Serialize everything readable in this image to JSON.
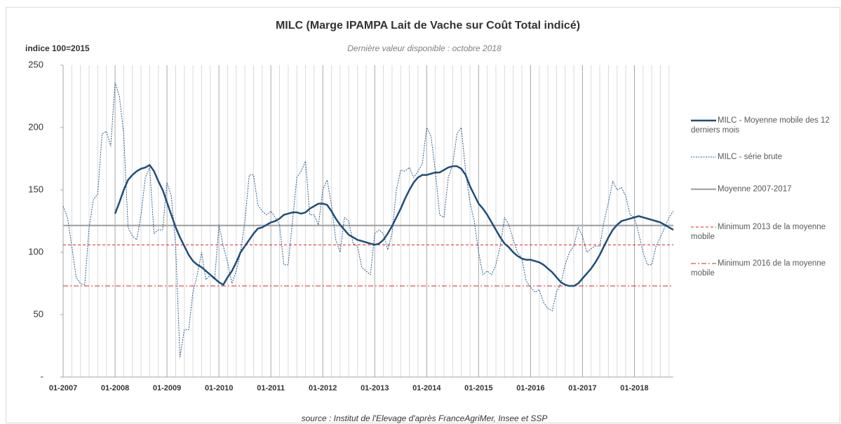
{
  "chart_data": {
    "type": "line",
    "title": "MILC (Marge IPAMPA Lait de Vache sur Coût Total indicé)",
    "subtitle": "Dernière valeur disponible : octobre 2018",
    "y_label": "indice 100=2015",
    "source": "source : Institut de l'Elevage d'après FranceAgriMer, Insee et SSP",
    "categories": [
      "01-2007",
      null,
      null,
      null,
      null,
      null,
      null,
      null,
      null,
      null,
      null,
      null,
      "01-2008",
      null,
      null,
      null,
      null,
      null,
      null,
      null,
      null,
      null,
      null,
      null,
      "01-2009",
      null,
      null,
      null,
      null,
      null,
      null,
      null,
      null,
      null,
      null,
      null,
      "01-2010",
      null,
      null,
      null,
      null,
      null,
      null,
      null,
      null,
      null,
      null,
      null,
      "01-2011",
      null,
      null,
      null,
      null,
      null,
      null,
      null,
      null,
      null,
      null,
      null,
      "01-2012",
      null,
      null,
      null,
      null,
      null,
      null,
      null,
      null,
      null,
      null,
      null,
      "01-2013",
      null,
      null,
      null,
      null,
      null,
      null,
      null,
      null,
      null,
      null,
      null,
      "01-2014",
      null,
      null,
      null,
      null,
      null,
      null,
      null,
      null,
      null,
      null,
      null,
      "01-2015",
      null,
      null,
      null,
      null,
      null,
      null,
      null,
      null,
      null,
      null,
      null,
      "01-2016",
      null,
      null,
      null,
      null,
      null,
      null,
      null,
      null,
      null,
      null,
      null,
      "01-2017",
      null,
      null,
      null,
      null,
      null,
      null,
      null,
      null,
      null,
      null,
      null,
      "01-2018",
      null,
      null,
      null,
      null,
      null,
      null,
      null,
      null,
      null
    ],
    "series": [
      {
        "name": "MILC - Moyenne mobile des 12 derniers mois",
        "color": "#1f4e79",
        "line_style": "solid",
        "values": [
          null,
          null,
          null,
          null,
          null,
          null,
          null,
          null,
          null,
          null,
          null,
          null,
          131,
          140,
          150,
          158,
          162,
          165,
          167,
          168,
          170,
          165,
          157,
          150,
          140,
          130,
          120,
          112,
          105,
          98,
          93,
          90,
          88,
          85,
          82,
          79,
          76,
          74,
          80,
          85,
          92,
          100,
          105,
          110,
          115,
          119,
          120,
          122,
          124,
          125,
          127,
          130,
          131,
          132,
          132,
          131,
          132,
          135,
          137,
          139,
          139,
          138,
          133,
          127,
          122,
          118,
          114,
          112,
          110,
          109,
          108,
          107,
          106,
          107,
          110,
          115,
          121,
          128,
          135,
          143,
          150,
          156,
          160,
          162,
          162,
          163,
          164,
          164,
          166,
          168,
          169,
          169,
          167,
          162,
          153,
          146,
          139,
          135,
          130,
          124,
          118,
          112,
          107,
          104,
          100,
          97,
          95,
          94,
          94,
          93,
          92,
          90,
          87,
          84,
          80,
          76,
          74,
          73,
          73,
          75,
          79,
          83,
          87,
          92,
          98,
          105,
          112,
          118,
          122,
          125,
          126,
          127,
          128,
          129,
          128,
          127,
          126,
          125,
          124,
          122,
          120,
          118
        ]
      },
      {
        "name": "MILC - série brute",
        "color": "#2e5c8a",
        "line_style": "dotted",
        "values": [
          137,
          128,
          105,
          80,
          75,
          74,
          120,
          142,
          147,
          195,
          197,
          185,
          236,
          225,
          195,
          120,
          113,
          110,
          130,
          160,
          168,
          115,
          118,
          118,
          156,
          145,
          105,
          16,
          38,
          38,
          68,
          82,
          100,
          78,
          82,
          78,
          122,
          105,
          92,
          75,
          85,
          100,
          125,
          162,
          162,
          138,
          133,
          130,
          133,
          128,
          122,
          90,
          90,
          125,
          160,
          165,
          173,
          130,
          130,
          122,
          150,
          158,
          138,
          110,
          100,
          128,
          125,
          107,
          105,
          88,
          85,
          82,
          115,
          118,
          115,
          102,
          115,
          150,
          166,
          165,
          168,
          160,
          165,
          171,
          200,
          193,
          165,
          130,
          128,
          160,
          170,
          195,
          200,
          165,
          140,
          125,
          100,
          82,
          85,
          82,
          90,
          105,
          128,
          122,
          110,
          100,
          95,
          77,
          72,
          68,
          70,
          60,
          55,
          53,
          68,
          75,
          90,
          100,
          105,
          120,
          113,
          100,
          103,
          105,
          105,
          125,
          140,
          157,
          150,
          152,
          145,
          130,
          128,
          115,
          100,
          90,
          90,
          105,
          112,
          120,
          128,
          133
        ]
      },
      {
        "name": "Moyenne 2007-2017",
        "color": "#a6a6a6",
        "line_style": "solid-gray",
        "value": 121.5
      },
      {
        "name": "Minimum 2013 de la moyenne mobile",
        "color": "#e0202a",
        "line_style": "dashed",
        "value": 106
      },
      {
        "name": "Minimum 2016 de la moyenne mobile",
        "color": "#e0202a",
        "line_style": "dashdot",
        "value": 73
      }
    ],
    "ylim": [
      0,
      250
    ],
    "yticks": [
      {
        "value": 0,
        "label": "-"
      },
      50,
      100,
      150,
      200,
      250
    ],
    "legend": "right"
  }
}
